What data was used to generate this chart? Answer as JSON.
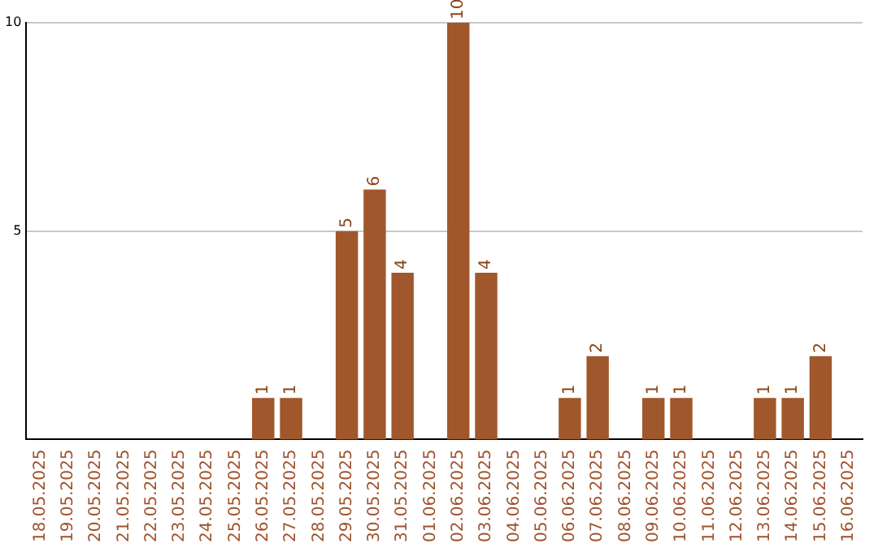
{
  "chart_data": {
    "type": "bar",
    "categories": [
      "18.05.2025",
      "19.05.2025",
      "20.05.2025",
      "21.05.2025",
      "22.05.2025",
      "23.05.2025",
      "24.05.2025",
      "25.05.2025",
      "26.05.2025",
      "27.05.2025",
      "28.05.2025",
      "29.05.2025",
      "30.05.2025",
      "31.05.2025",
      "01.06.2025",
      "02.06.2025",
      "03.06.2025",
      "04.06.2025",
      "05.06.2025",
      "06.06.2025",
      "07.06.2025",
      "08.06.2025",
      "09.06.2025",
      "10.06.2025",
      "11.06.2025",
      "12.06.2025",
      "13.06.2025",
      "14.06.2025",
      "15.06.2025",
      "16.06.2025"
    ],
    "values": [
      0,
      0,
      0,
      0,
      0,
      0,
      0,
      0,
      1,
      1,
      0,
      5,
      6,
      4,
      0,
      10,
      4,
      0,
      0,
      1,
      2,
      0,
      1,
      1,
      0,
      0,
      1,
      1,
      2,
      0
    ],
    "value_labels": [
      null,
      null,
      null,
      null,
      null,
      null,
      null,
      null,
      "1",
      "1",
      null,
      "5",
      "6",
      "4",
      null,
      "10",
      "4",
      null,
      null,
      "1",
      "2",
      null,
      "1",
      "1",
      null,
      null,
      "1",
      "1",
      "2",
      null
    ],
    "color": "#a0572b",
    "ylim": [
      0,
      10
    ],
    "yticks": [
      5,
      10
    ],
    "grid": "y",
    "legend": false
  }
}
